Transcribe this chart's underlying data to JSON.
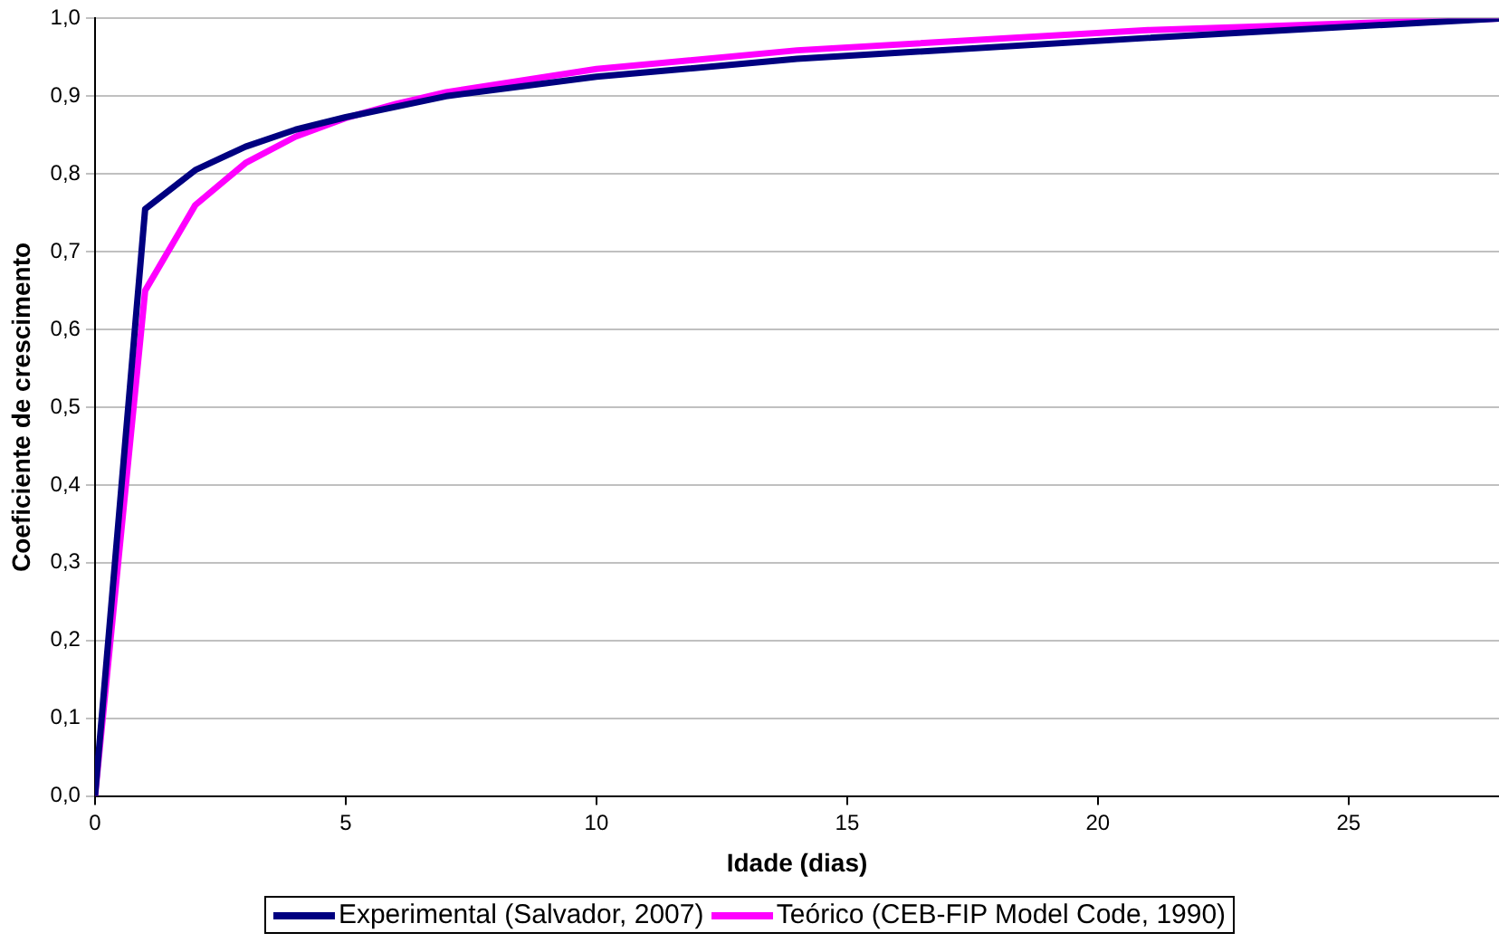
{
  "chart_data": {
    "type": "line",
    "xlabel": "Idade (dias)",
    "ylabel": "Coeficiente de crescimento",
    "xlim": [
      0,
      28
    ],
    "xticks": [
      0,
      5,
      10,
      15,
      20,
      25
    ],
    "ylim": [
      0,
      1
    ],
    "yticks": [
      {
        "value": 0,
        "label": "0,0"
      },
      {
        "value": 0.1,
        "label": "0,1"
      },
      {
        "value": 0.2,
        "label": "0,2"
      },
      {
        "value": 0.3,
        "label": "0,3"
      },
      {
        "value": 0.4,
        "label": "0,4"
      },
      {
        "value": 0.5,
        "label": "0,5"
      },
      {
        "value": 0.6,
        "label": "0,6"
      },
      {
        "value": 0.7,
        "label": "0,7"
      },
      {
        "value": 0.8,
        "label": "0,8"
      },
      {
        "value": 0.9,
        "label": "0,9"
      },
      {
        "value": 1,
        "label": "1,0"
      }
    ],
    "grid": "y",
    "legend": "bottom",
    "marker": "none",
    "line_style": "solid",
    "series": [
      {
        "name": "Experimental (Salvador, 2007)",
        "color": "#000080",
        "x": [
          0,
          1,
          2,
          3,
          4,
          5,
          7,
          10,
          14,
          21,
          28
        ],
        "values": [
          0,
          0.755,
          0.805,
          0.835,
          0.857,
          0.873,
          0.9,
          0.925,
          0.948,
          0.975,
          1.0
        ]
      },
      {
        "name": "Teórico (CEB-FIP Model Code, 1990)",
        "color": "#ff00ff",
        "x": [
          0,
          1,
          2,
          3,
          4,
          5,
          6,
          7,
          10,
          14,
          21,
          28
        ],
        "values": [
          0,
          0.65,
          0.76,
          0.814,
          0.848,
          0.872,
          0.89,
          0.905,
          0.935,
          0.959,
          0.985,
          1.0
        ]
      }
    ]
  }
}
